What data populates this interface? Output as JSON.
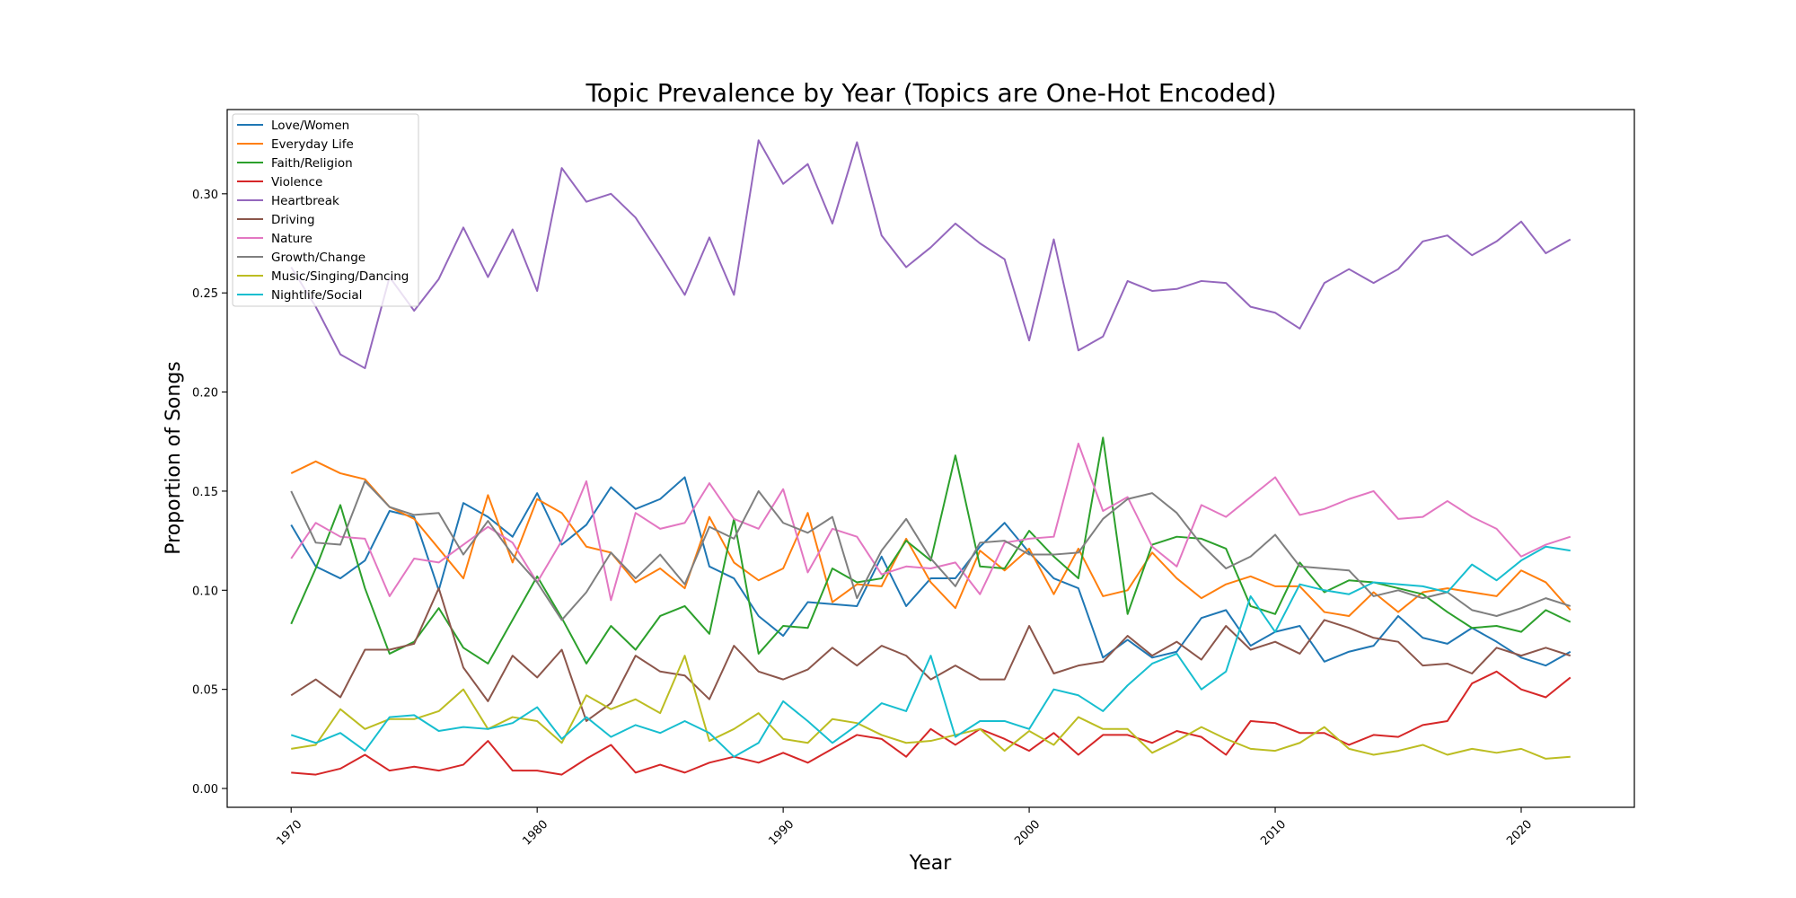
{
  "chart_data": {
    "type": "line",
    "title": "Topic Prevalence by Year (Topics are One-Hot Encoded)",
    "xlabel": "Year",
    "ylabel": "Proportion of Songs",
    "xlim": [
      1967.4,
      2024.6
    ],
    "ylim": [
      -0.0095,
      0.3425
    ],
    "xticks": [
      1970,
      1980,
      1990,
      2000,
      2010,
      2020
    ],
    "yticks": [
      0.0,
      0.05,
      0.1,
      0.15,
      0.2,
      0.25,
      0.3
    ],
    "ytick_labels": [
      "0.00",
      "0.05",
      "0.10",
      "0.15",
      "0.20",
      "0.25",
      "0.30"
    ],
    "grid": false,
    "legend_position": "top-left",
    "x": [
      1970,
      1971,
      1972,
      1973,
      1974,
      1975,
      1976,
      1977,
      1978,
      1979,
      1980,
      1981,
      1982,
      1983,
      1984,
      1985,
      1986,
      1987,
      1988,
      1989,
      1990,
      1991,
      1992,
      1993,
      1994,
      1995,
      1996,
      1997,
      1998,
      1999,
      2000,
      2001,
      2002,
      2003,
      2004,
      2005,
      2006,
      2007,
      2008,
      2009,
      2010,
      2011,
      2012,
      2013,
      2014,
      2015,
      2016,
      2017,
      2018,
      2019,
      2020,
      2021,
      2022
    ],
    "series": [
      {
        "name": "Love/Women",
        "color": "#1f77b4",
        "values": [
          0.133,
          0.112,
          0.106,
          0.115,
          0.14,
          0.137,
          0.1,
          0.144,
          0.137,
          0.127,
          0.149,
          0.123,
          0.133,
          0.152,
          0.141,
          0.146,
          0.157,
          0.112,
          0.106,
          0.087,
          0.077,
          0.094,
          0.093,
          0.092,
          0.117,
          0.092,
          0.106,
          0.106,
          0.122,
          0.134,
          0.119,
          0.106,
          0.101,
          0.066,
          0.075,
          0.066,
          0.069,
          0.086,
          0.09,
          0.072,
          0.079,
          0.082,
          0.064,
          0.069,
          0.072,
          0.087,
          0.076,
          0.073,
          0.081,
          0.074,
          0.066,
          0.062,
          0.069
        ]
      },
      {
        "name": "Everyday Life",
        "color": "#ff7f0e",
        "values": [
          0.159,
          0.165,
          0.159,
          0.156,
          0.142,
          0.136,
          0.121,
          0.106,
          0.148,
          0.114,
          0.146,
          0.139,
          0.122,
          0.119,
          0.104,
          0.111,
          0.101,
          0.137,
          0.114,
          0.105,
          0.111,
          0.139,
          0.094,
          0.103,
          0.102,
          0.126,
          0.104,
          0.091,
          0.12,
          0.11,
          0.121,
          0.098,
          0.121,
          0.097,
          0.1,
          0.119,
          0.106,
          0.096,
          0.103,
          0.107,
          0.102,
          0.102,
          0.089,
          0.087,
          0.099,
          0.089,
          0.099,
          0.101,
          0.099,
          0.097,
          0.11,
          0.104,
          0.09
        ]
      },
      {
        "name": "Faith/Religion",
        "color": "#2ca02c",
        "values": [
          0.083,
          0.111,
          0.143,
          0.101,
          0.068,
          0.074,
          0.091,
          0.071,
          0.063,
          0.085,
          0.107,
          0.086,
          0.063,
          0.082,
          0.07,
          0.087,
          0.092,
          0.078,
          0.136,
          0.068,
          0.082,
          0.081,
          0.111,
          0.104,
          0.106,
          0.125,
          0.115,
          0.168,
          0.112,
          0.111,
          0.13,
          0.117,
          0.106,
          0.177,
          0.088,
          0.123,
          0.127,
          0.126,
          0.121,
          0.092,
          0.088,
          0.114,
          0.099,
          0.105,
          0.104,
          0.101,
          0.098,
          0.089,
          0.081,
          0.082,
          0.079,
          0.09,
          0.084
        ]
      },
      {
        "name": "Violence",
        "color": "#d62728",
        "values": [
          0.008,
          0.007,
          0.01,
          0.017,
          0.009,
          0.011,
          0.009,
          0.012,
          0.024,
          0.009,
          0.009,
          0.007,
          0.015,
          0.022,
          0.008,
          0.012,
          0.008,
          0.013,
          0.016,
          0.013,
          0.018,
          0.013,
          0.02,
          0.027,
          0.025,
          0.016,
          0.03,
          0.022,
          0.03,
          0.025,
          0.019,
          0.028,
          0.017,
          0.027,
          0.027,
          0.023,
          0.029,
          0.026,
          0.017,
          0.034,
          0.033,
          0.028,
          0.028,
          0.022,
          0.027,
          0.026,
          0.032,
          0.034,
          0.053,
          0.059,
          0.05,
          0.046,
          0.056
        ]
      },
      {
        "name": "Heartbreak",
        "color": "#9467bd",
        "values": [
          0.263,
          0.243,
          0.219,
          0.212,
          0.258,
          0.241,
          0.257,
          0.283,
          0.258,
          0.282,
          0.251,
          0.313,
          0.296,
          0.3,
          0.288,
          0.269,
          0.249,
          0.278,
          0.249,
          0.327,
          0.305,
          0.315,
          0.285,
          0.326,
          0.279,
          0.263,
          0.273,
          0.285,
          0.275,
          0.267,
          0.226,
          0.277,
          0.221,
          0.228,
          0.256,
          0.251,
          0.252,
          0.256,
          0.255,
          0.243,
          0.24,
          0.232,
          0.255,
          0.262,
          0.255,
          0.262,
          0.276,
          0.279,
          0.269,
          0.276,
          0.286,
          0.27,
          0.277
        ]
      },
      {
        "name": "Driving",
        "color": "#8c564b",
        "values": [
          0.047,
          0.055,
          0.046,
          0.07,
          0.07,
          0.073,
          0.101,
          0.061,
          0.044,
          0.067,
          0.056,
          0.07,
          0.034,
          0.043,
          0.067,
          0.059,
          0.057,
          0.045,
          0.072,
          0.059,
          0.055,
          0.06,
          0.071,
          0.062,
          0.072,
          0.067,
          0.055,
          0.062,
          0.055,
          0.055,
          0.082,
          0.058,
          0.062,
          0.064,
          0.077,
          0.067,
          0.074,
          0.065,
          0.082,
          0.07,
          0.074,
          0.068,
          0.085,
          0.081,
          0.076,
          0.074,
          0.062,
          0.063,
          0.058,
          0.071,
          0.067,
          0.071,
          0.067
        ]
      },
      {
        "name": "Nature",
        "color": "#e377c2",
        "values": [
          0.116,
          0.134,
          0.127,
          0.126,
          0.097,
          0.116,
          0.114,
          0.123,
          0.132,
          0.124,
          0.104,
          0.125,
          0.155,
          0.095,
          0.139,
          0.131,
          0.134,
          0.154,
          0.136,
          0.131,
          0.151,
          0.109,
          0.131,
          0.127,
          0.108,
          0.112,
          0.111,
          0.114,
          0.098,
          0.124,
          0.126,
          0.127,
          0.174,
          0.14,
          0.147,
          0.122,
          0.112,
          0.143,
          0.137,
          0.147,
          0.157,
          0.138,
          0.141,
          0.146,
          0.15,
          0.136,
          0.137,
          0.145,
          0.137,
          0.131,
          0.117,
          0.123,
          0.127
        ]
      },
      {
        "name": "Growth/Change",
        "color": "#7f7f7f",
        "values": [
          0.15,
          0.124,
          0.123,
          0.155,
          0.142,
          0.138,
          0.139,
          0.118,
          0.135,
          0.118,
          0.104,
          0.085,
          0.099,
          0.119,
          0.106,
          0.118,
          0.103,
          0.132,
          0.126,
          0.15,
          0.134,
          0.129,
          0.137,
          0.096,
          0.12,
          0.136,
          0.116,
          0.102,
          0.124,
          0.125,
          0.118,
          0.118,
          0.119,
          0.136,
          0.146,
          0.149,
          0.139,
          0.123,
          0.111,
          0.117,
          0.128,
          0.112,
          0.111,
          0.11,
          0.097,
          0.1,
          0.096,
          0.099,
          0.09,
          0.087,
          0.091,
          0.096,
          0.092
        ]
      },
      {
        "name": "Music/Singing/Dancing",
        "color": "#bcbd22",
        "values": [
          0.02,
          0.022,
          0.04,
          0.03,
          0.035,
          0.035,
          0.039,
          0.05,
          0.03,
          0.036,
          0.034,
          0.023,
          0.047,
          0.04,
          0.045,
          0.038,
          0.067,
          0.024,
          0.03,
          0.038,
          0.025,
          0.023,
          0.035,
          0.033,
          0.027,
          0.023,
          0.024,
          0.027,
          0.03,
          0.019,
          0.029,
          0.022,
          0.036,
          0.03,
          0.03,
          0.018,
          0.024,
          0.031,
          0.025,
          0.02,
          0.019,
          0.023,
          0.031,
          0.02,
          0.017,
          0.019,
          0.022,
          0.017,
          0.02,
          0.018,
          0.02,
          0.015,
          0.016
        ]
      },
      {
        "name": "Nightlife/Social",
        "color": "#17becf",
        "values": [
          0.027,
          0.023,
          0.028,
          0.019,
          0.036,
          0.037,
          0.029,
          0.031,
          0.03,
          0.033,
          0.041,
          0.025,
          0.036,
          0.026,
          0.032,
          0.028,
          0.034,
          0.028,
          0.016,
          0.023,
          0.044,
          0.034,
          0.023,
          0.032,
          0.043,
          0.039,
          0.067,
          0.026,
          0.034,
          0.034,
          0.03,
          0.05,
          0.047,
          0.039,
          0.052,
          0.063,
          0.068,
          0.05,
          0.059,
          0.097,
          0.079,
          0.103,
          0.1,
          0.098,
          0.104,
          0.103,
          0.102,
          0.099,
          0.113,
          0.105,
          0.115,
          0.122,
          0.12
        ]
      }
    ]
  }
}
